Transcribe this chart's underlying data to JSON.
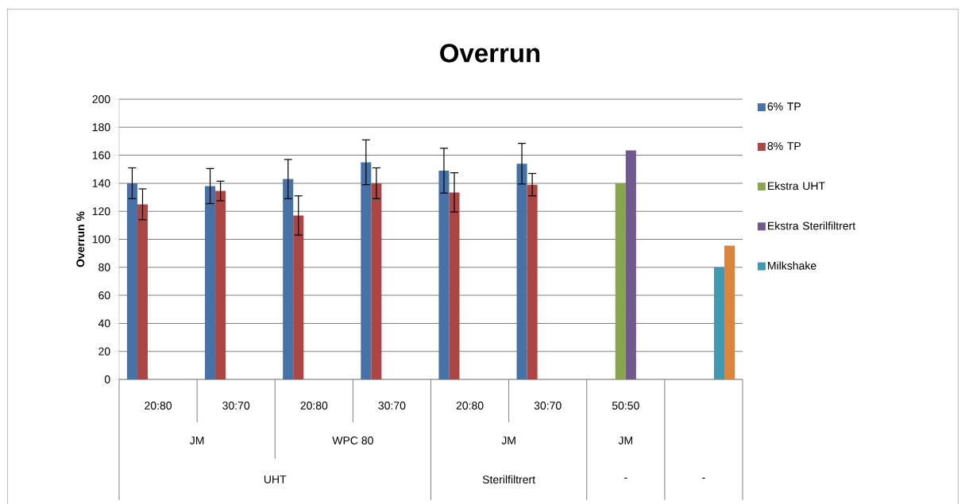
{
  "chart_data": {
    "type": "bar",
    "title": "Overrun",
    "ylabel": "Overrun %",
    "categories": [
      "20:80",
      "30:70",
      "20:80",
      "30:70",
      "20:80",
      "30:70",
      "50:50",
      null
    ],
    "annotations": [
      "JM",
      "WPC 80",
      "JM",
      "JM",
      "UHT",
      "Sterilfiltrert",
      "-",
      "-"
    ],
    "ylim": [
      0,
      200
    ],
    "yticks": [
      0,
      20,
      40,
      60,
      80,
      100,
      120,
      140,
      160,
      180,
      200
    ],
    "grid": "y",
    "legend": "right",
    "series": [
      {
        "name": "6% TP",
        "color": "#4672a8",
        "values": [
          140,
          138,
          143,
          155,
          149,
          154,
          null,
          null
        ],
        "errors": [
          11,
          12.5,
          14,
          16,
          16,
          14.5,
          null,
          null
        ]
      },
      {
        "name": "8% TP",
        "color": "#aa4643",
        "values": [
          125,
          134.5,
          117,
          140,
          133.5,
          139,
          null,
          null
        ],
        "errors": [
          11,
          7,
          14,
          11,
          14,
          8,
          null,
          null
        ]
      },
      {
        "name": "Ekstra UHT",
        "color": "#89a54e",
        "values": [
          null,
          null,
          null,
          null,
          null,
          null,
          140,
          null
        ]
      },
      {
        "name": "Ekstra Sterilfiltrert",
        "color": "#71588f",
        "values": [
          null,
          null,
          null,
          null,
          null,
          null,
          163.5,
          null
        ]
      },
      {
        "name": "Milkshake",
        "color": "#4198af",
        "values": [
          null,
          null,
          null,
          null,
          null,
          null,
          null,
          80
        ]
      },
      {
        "color": "#db843d",
        "values": [
          null,
          null,
          null,
          null,
          null,
          null,
          null,
          95.5
        ]
      }
    ]
  }
}
